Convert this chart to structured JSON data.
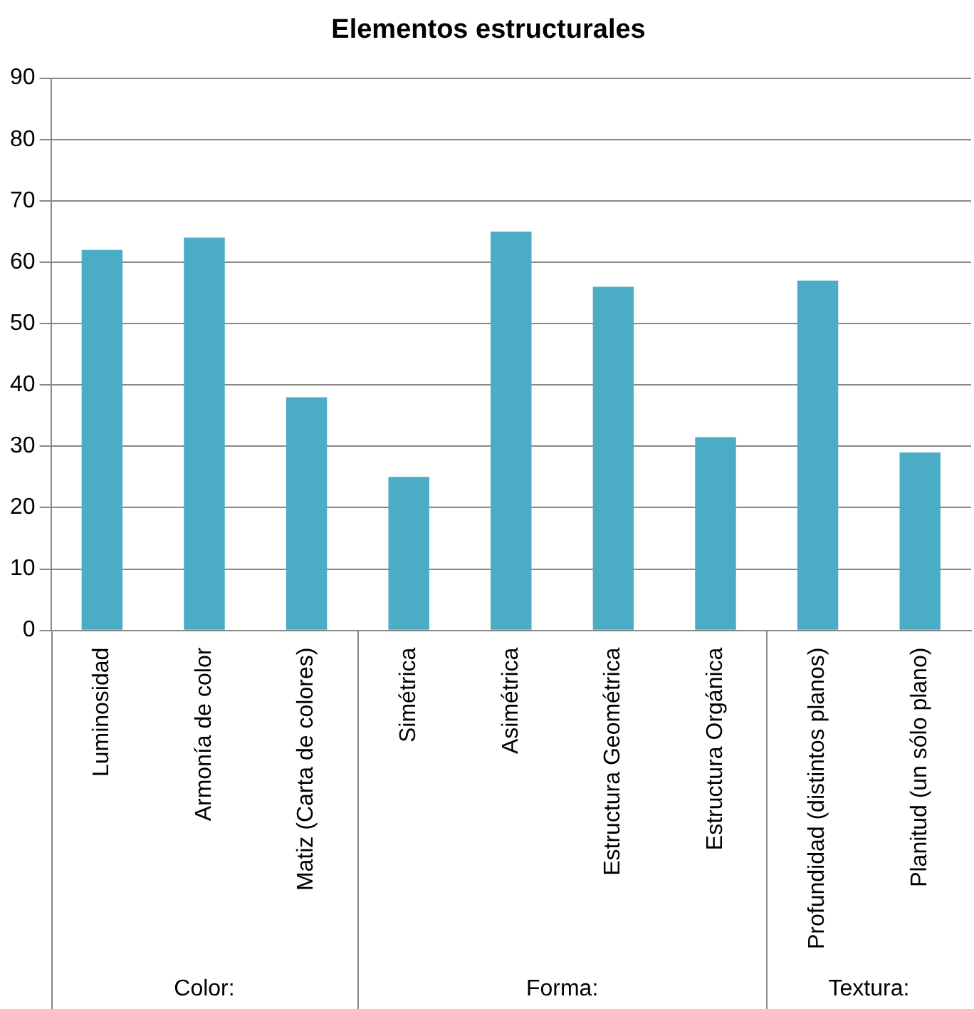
{
  "chart_data": {
    "type": "bar",
    "title": "Elementos estructurales",
    "categories": [
      "Luminosidad",
      "Armonía de color",
      "Matiz (Carta de colores)",
      "Simétrica",
      "Asimétrica",
      "Estructura Geométrica",
      "Estructura Orgánica",
      "Profundidad (distintos planos)",
      "Planitud (un sólo plano)"
    ],
    "values": [
      62,
      64,
      38,
      25,
      65,
      56,
      31.5,
      57,
      29
    ],
    "color": "#4bacc6",
    "ylim": [
      0,
      90
    ],
    "yticks": [
      0,
      10,
      20,
      30,
      40,
      50,
      60,
      70,
      80,
      90
    ],
    "grid": "y",
    "annotations": [
      "Color:",
      "Forma:",
      "Textura:"
    ]
  }
}
